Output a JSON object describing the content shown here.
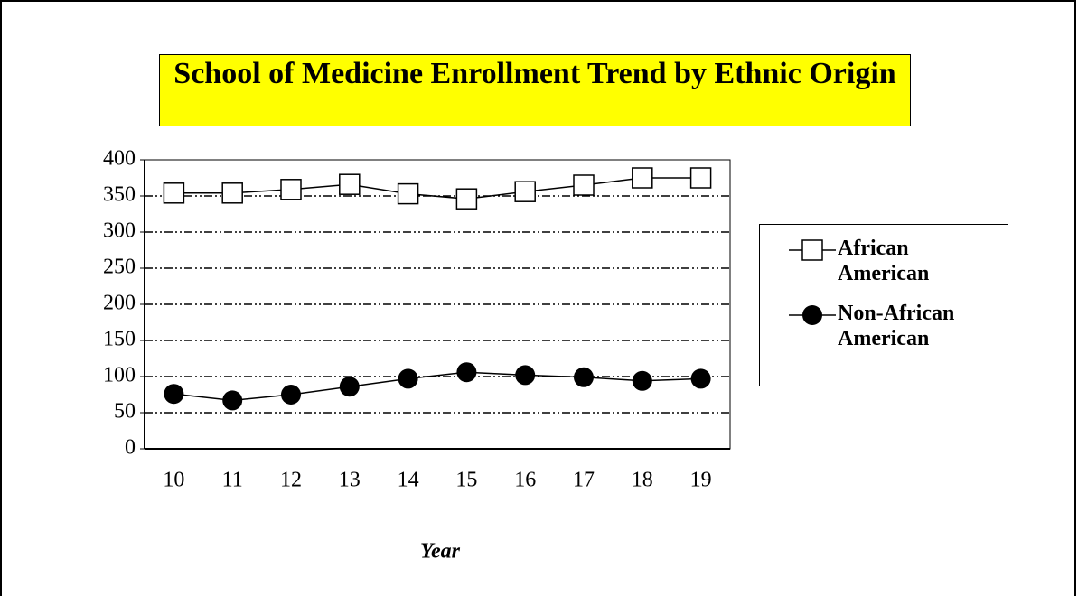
{
  "chart_data": {
    "type": "line",
    "title": "School of Medicine Enrollment Trend by Ethnic Origin",
    "x_label": "Year",
    "categories": [
      "10",
      "11",
      "12",
      "13",
      "14",
      "15",
      "16",
      "17",
      "18",
      "19"
    ],
    "series": [
      {
        "name": "African American",
        "color": "#000000",
        "marker": "square",
        "values": [
          354,
          354,
          359,
          366,
          353,
          346,
          356,
          365,
          375,
          375
        ]
      },
      {
        "name": "Non-African American",
        "color": "#000000",
        "marker": "circle",
        "values": [
          76,
          67,
          75,
          86,
          97,
          106,
          102,
          99,
          94,
          97
        ]
      }
    ],
    "ylim": [
      0,
      400
    ],
    "yticks": [
      0,
      50,
      100,
      150,
      200,
      250,
      300,
      350,
      400
    ],
    "grid": true,
    "legend": "right"
  }
}
